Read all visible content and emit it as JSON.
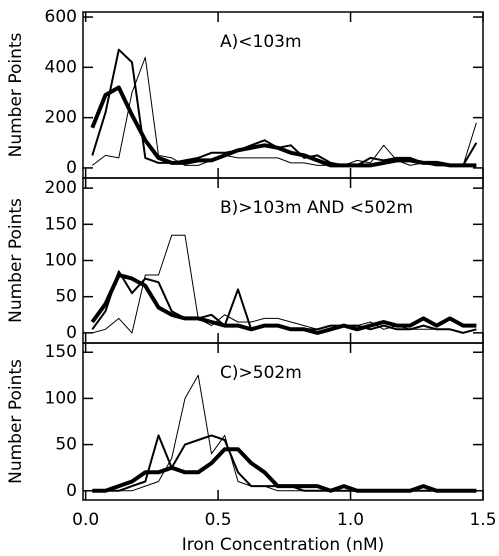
{
  "chart_data": [
    {
      "type": "line",
      "title": "A)<103m",
      "ylabel": "Number Points",
      "x": [
        0.025,
        0.075,
        0.125,
        0.175,
        0.225,
        0.275,
        0.325,
        0.375,
        0.425,
        0.475,
        0.525,
        0.575,
        0.625,
        0.675,
        0.725,
        0.775,
        0.825,
        0.875,
        0.925,
        0.975,
        1.025,
        1.075,
        1.125,
        1.175,
        1.225,
        1.275,
        1.325,
        1.375,
        1.425,
        1.475
      ],
      "xlim": [
        -0.01,
        1.5
      ],
      "ylim": [
        -40,
        620
      ],
      "yticks": [
        0,
        200,
        400,
        600
      ],
      "series": [
        {
          "color": "#000000",
          "linewidth": 1,
          "values": [
            10,
            50,
            40,
            300,
            440,
            50,
            40,
            10,
            10,
            30,
            50,
            40,
            40,
            40,
            40,
            20,
            20,
            10,
            10,
            10,
            30,
            20,
            90,
            30,
            10,
            20,
            10,
            10,
            10,
            180
          ]
        },
        {
          "color": "#000000",
          "linewidth": 2,
          "values": [
            50,
            220,
            470,
            420,
            40,
            20,
            20,
            30,
            40,
            60,
            60,
            70,
            90,
            110,
            80,
            90,
            40,
            50,
            20,
            10,
            10,
            40,
            30,
            40,
            40,
            20,
            10,
            10,
            10,
            100
          ]
        },
        {
          "color": "#000000",
          "linewidth": 4,
          "values": [
            160,
            290,
            320,
            210,
            110,
            40,
            20,
            20,
            30,
            30,
            50,
            70,
            80,
            90,
            80,
            60,
            50,
            30,
            10,
            10,
            10,
            10,
            20,
            30,
            30,
            20,
            20,
            10,
            10,
            10
          ]
        }
      ]
    },
    {
      "type": "line",
      "title": "B)>103m AND <502m",
      "ylabel": "Number Points",
      "x": [
        0.025,
        0.075,
        0.125,
        0.175,
        0.225,
        0.275,
        0.325,
        0.375,
        0.425,
        0.475,
        0.525,
        0.575,
        0.625,
        0.675,
        0.725,
        0.775,
        0.825,
        0.875,
        0.925,
        0.975,
        1.025,
        1.075,
        1.125,
        1.175,
        1.225,
        1.275,
        1.325,
        1.375,
        1.425,
        1.475
      ],
      "xlim": [
        -0.01,
        1.5
      ],
      "ylim": [
        -14,
        214
      ],
      "yticks": [
        0,
        50,
        100,
        150,
        200
      ],
      "series": [
        {
          "color": "#000000",
          "linewidth": 1,
          "values": [
            0,
            5,
            20,
            0,
            80,
            80,
            135,
            135,
            20,
            10,
            25,
            15,
            15,
            20,
            20,
            15,
            10,
            5,
            10,
            10,
            10,
            15,
            5,
            10,
            5,
            5,
            5,
            5,
            0,
            5
          ]
        },
        {
          "color": "#000000",
          "linewidth": 2,
          "values": [
            5,
            30,
            85,
            55,
            75,
            70,
            30,
            20,
            20,
            25,
            10,
            60,
            5,
            10,
            10,
            5,
            5,
            5,
            10,
            10,
            10,
            5,
            10,
            5,
            5,
            10,
            5,
            5,
            0,
            5
          ]
        },
        {
          "color": "#000000",
          "linewidth": 4,
          "values": [
            15,
            40,
            80,
            75,
            65,
            35,
            25,
            20,
            20,
            15,
            10,
            10,
            5,
            10,
            10,
            5,
            5,
            0,
            5,
            10,
            5,
            10,
            15,
            10,
            10,
            20,
            10,
            20,
            10,
            10
          ]
        }
      ]
    },
    {
      "type": "line",
      "title": "C)>502m",
      "ylabel": "Number Points",
      "xlabel": "Iron Concentration (nM)",
      "x": [
        0.025,
        0.075,
        0.125,
        0.175,
        0.225,
        0.275,
        0.325,
        0.375,
        0.425,
        0.475,
        0.525,
        0.575,
        0.625,
        0.675,
        0.725,
        0.775,
        0.825,
        0.875,
        0.925,
        0.975,
        1.025,
        1.075,
        1.125,
        1.175,
        1.225,
        1.275,
        1.325,
        1.375,
        1.425,
        1.475
      ],
      "xlim": [
        -0.01,
        1.5
      ],
      "ylim": [
        -10,
        160
      ],
      "yticks": [
        0,
        50,
        100,
        150
      ],
      "xticks": [
        {
          "value": 0,
          "label": "0.0"
        },
        0.5,
        {
          "value": 1,
          "label": "1.0"
        },
        1.5
      ],
      "series": [
        {
          "color": "#000000",
          "linewidth": 1,
          "values": [
            0,
            0,
            0,
            0,
            5,
            10,
            35,
            100,
            125,
            40,
            60,
            10,
            5,
            5,
            0,
            0,
            0,
            0,
            0,
            0,
            0,
            0,
            0,
            0,
            0,
            0,
            0,
            0,
            0,
            0
          ]
        },
        {
          "color": "#000000",
          "linewidth": 2,
          "values": [
            0,
            0,
            0,
            5,
            10,
            60,
            25,
            50,
            55,
            60,
            55,
            20,
            5,
            5,
            5,
            5,
            0,
            0,
            0,
            0,
            0,
            0,
            0,
            0,
            0,
            0,
            0,
            0,
            0,
            0
          ]
        },
        {
          "color": "#000000",
          "linewidth": 4,
          "values": [
            0,
            0,
            5,
            10,
            20,
            20,
            25,
            20,
            20,
            30,
            45,
            45,
            30,
            20,
            5,
            5,
            5,
            5,
            0,
            5,
            0,
            0,
            0,
            0,
            0,
            5,
            0,
            0,
            0,
            0
          ]
        }
      ]
    }
  ]
}
